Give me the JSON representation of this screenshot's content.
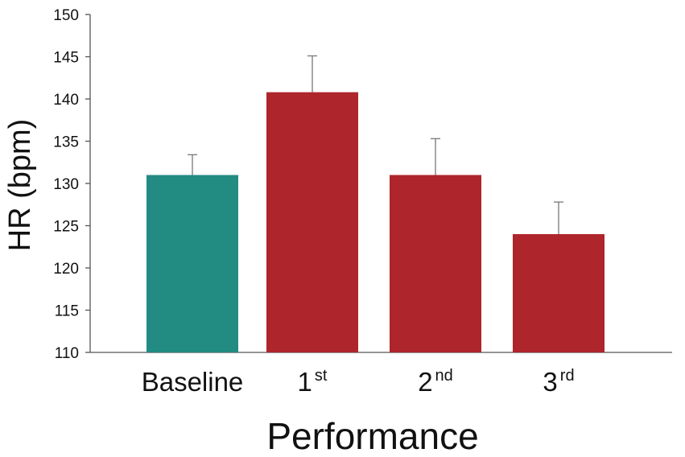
{
  "chart_data": {
    "type": "bar",
    "title": "",
    "xlabel": "Performance",
    "ylabel": "HR (bpm)",
    "ylim": [
      110,
      150
    ],
    "yticks": [
      110,
      115,
      120,
      125,
      130,
      135,
      140,
      145,
      150
    ],
    "categories": [
      {
        "main": "Baseline",
        "sup": ""
      },
      {
        "main": "1",
        "sup": "st"
      },
      {
        "main": "2",
        "sup": "nd"
      },
      {
        "main": "3",
        "sup": "rd"
      }
    ],
    "values": [
      131,
      140.8,
      131,
      124
    ],
    "error_upper": [
      2.4,
      4.3,
      4.3,
      3.8
    ],
    "colors": [
      "#228B82",
      "#AE252B",
      "#AE252B",
      "#AE252B"
    ],
    "grid": false,
    "legend": "none"
  }
}
